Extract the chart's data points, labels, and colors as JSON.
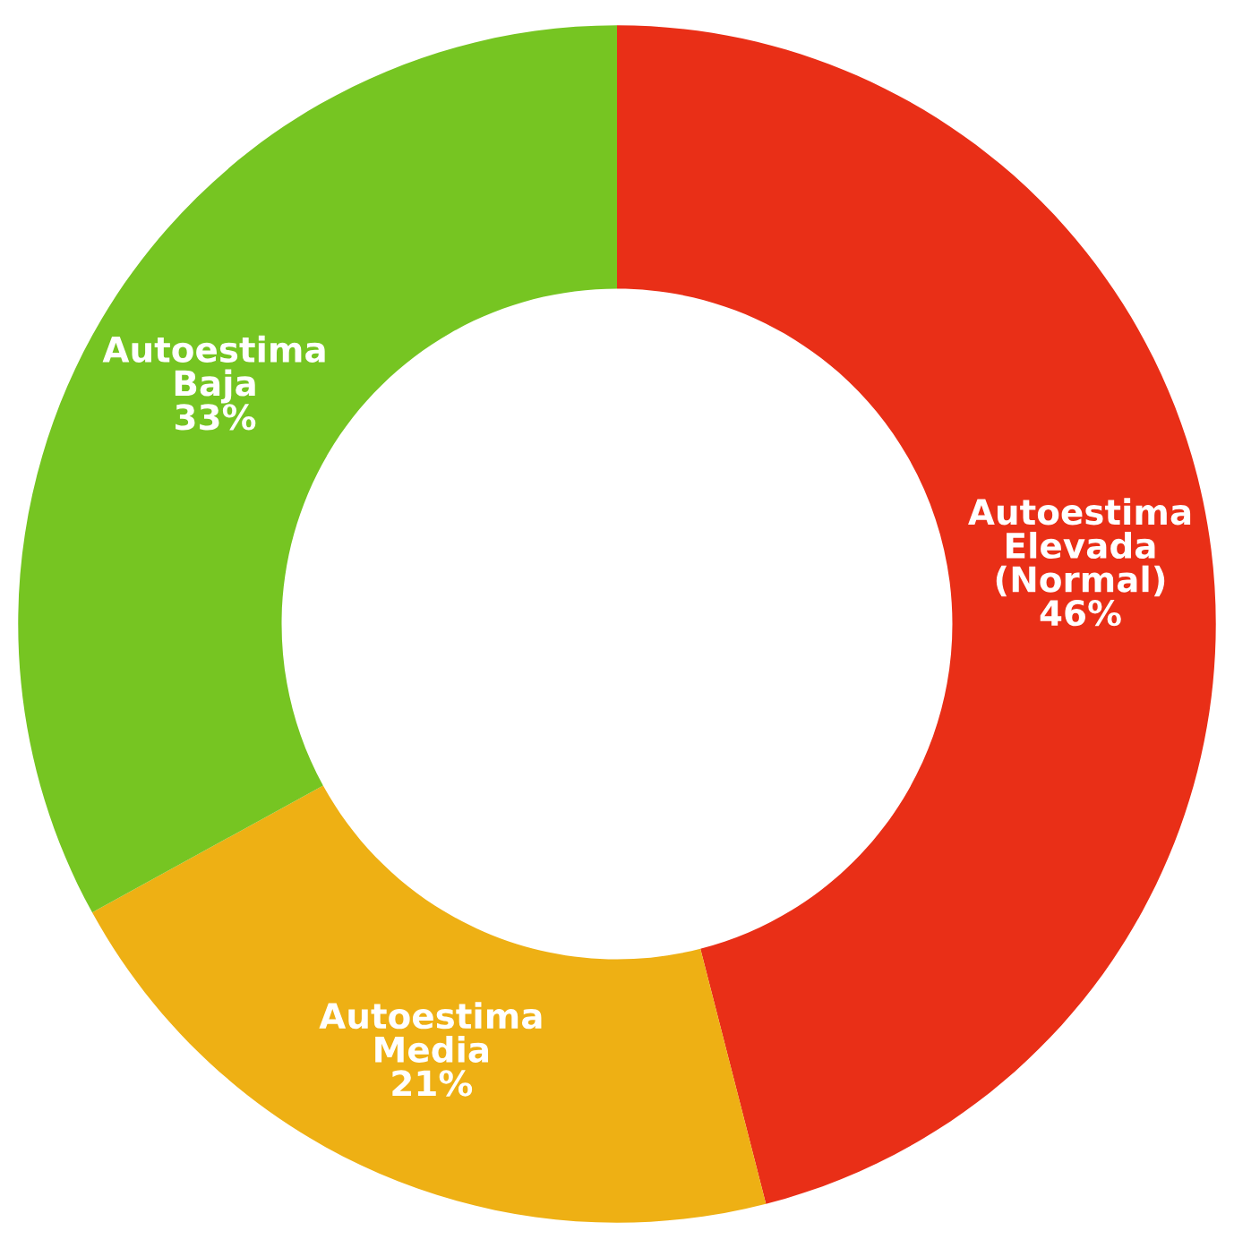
{
  "chart_data": {
    "type": "donut",
    "categories": [
      "Autoestima\nElevada\n(Normal)",
      "Autoestima\nMedia",
      "Autoestima\nBaja"
    ],
    "values": [
      46,
      21,
      33
    ],
    "colors": [
      "#e92f17",
      "#eeb014",
      "#76c522"
    ],
    "value_labels": [
      "46%",
      "21%",
      "33%"
    ]
  }
}
